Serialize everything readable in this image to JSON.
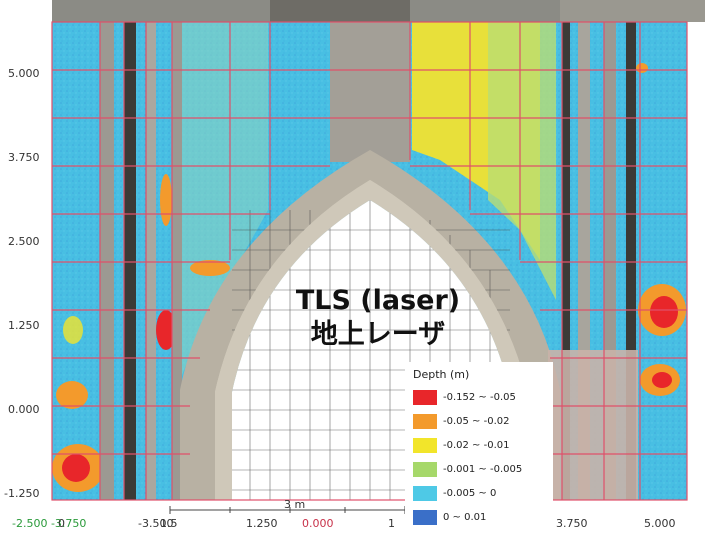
{
  "y_axis": {
    "labels": [
      "5.000",
      "3.750",
      "2.500",
      "1.250",
      "0.000",
      "-1.250"
    ]
  },
  "x_axis": {
    "labels": [
      {
        "text": "0",
        "green": false
      },
      {
        "text": "1.5",
        "green": false
      },
      {
        "text": "1.250",
        "green": false
      },
      {
        "text": "0.000",
        "green": true
      },
      {
        "text": "1",
        "green": false
      },
      {
        "text": "3.750",
        "green": false
      },
      {
        "text": "5.000",
        "green": false
      }
    ],
    "left_partial": "-2.500  -3.750",
    "middle_partial": "-3.500"
  },
  "scale_bar": {
    "label": "3 m"
  },
  "overlay": {
    "line1": "TLS (laser)",
    "line2": "地上レーザ"
  },
  "legend": {
    "title": "Depth (m)",
    "items": [
      {
        "label": "-0.152 ~ -0.05",
        "color": "#e8262a"
      },
      {
        "label": "-0.05 ~ -0.02",
        "color": "#f39a2c"
      },
      {
        "label": "-0.02 ~ -0.01",
        "color": "#f2e52a"
      },
      {
        "label": "-0.001 ~ -0.005",
        "color": "#a6d86a"
      },
      {
        "label": "-0.005 ~ 0",
        "color": "#4ec9e6"
      },
      {
        "label": "0 ~ 0.01",
        "color": "#3a6fc8"
      }
    ]
  }
}
